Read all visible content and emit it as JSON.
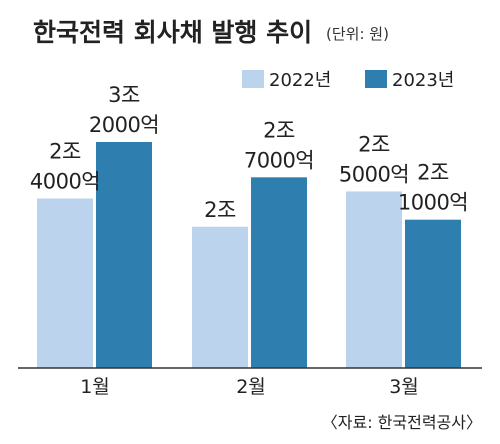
{
  "chart_data": {
    "type": "bar",
    "title": "한국전력 회사채 발행 추이",
    "unit_note": "(단위: 원)",
    "source": "〈자료: 한국전력공사〉",
    "categories": [
      "1월",
      "2월",
      "3월"
    ],
    "series": [
      {
        "name": "2022년",
        "color": "#bcd3ee",
        "values": [
          24000,
          20000,
          25000
        ],
        "labels": [
          [
            "2조",
            "4000억"
          ],
          [
            "2조",
            ""
          ],
          [
            "2조",
            "5000억"
          ]
        ]
      },
      {
        "name": "2023년",
        "color": "#2e7fb0",
        "values": [
          32000,
          27000,
          21000
        ],
        "labels": [
          [
            "3조",
            "2000억"
          ],
          [
            "2조",
            "7000억"
          ],
          [
            "2조",
            "1000억"
          ]
        ]
      }
    ],
    "ylabel": "",
    "legend_position": "top-right",
    "grid": false
  }
}
